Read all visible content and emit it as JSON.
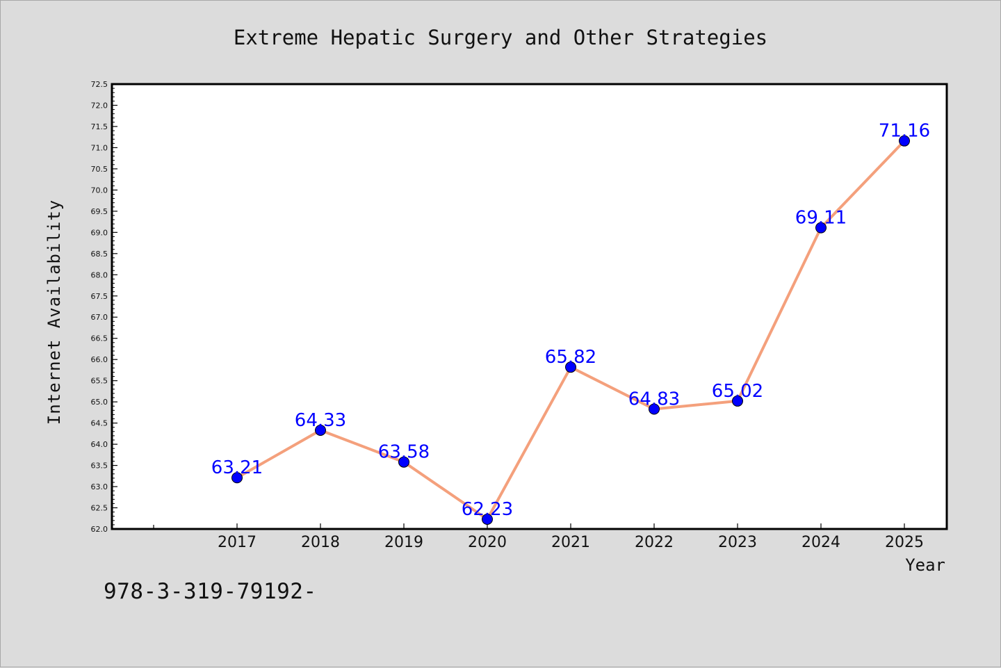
{
  "chart_data": {
    "type": "line",
    "title": "Extreme Hepatic Surgery and Other Strategies",
    "xlabel": "Year",
    "ylabel": "Internet Availability",
    "categories": [
      "2017",
      "2018",
      "2019",
      "2020",
      "2021",
      "2022",
      "2023",
      "2024",
      "2025"
    ],
    "series": [
      {
        "values": [
          63.21,
          64.33,
          63.58,
          62.23,
          65.82,
          64.83,
          65.02,
          69.11,
          71.16
        ],
        "data_labels": [
          "63.21",
          "64.33",
          "63.58",
          "62.23",
          "65.82",
          "64.83",
          "65.02",
          "69.11",
          "71.16"
        ]
      }
    ],
    "ylim": [
      62.0,
      72.5
    ],
    "y_ticks": [
      "62.0",
      "62.5",
      "63.0",
      "63.5",
      "64.0",
      "64.5",
      "65.0",
      "65.5",
      "66.0",
      "66.5",
      "67.0",
      "67.5",
      "68.0",
      "68.5",
      "69.0",
      "69.5",
      "70.0",
      "70.5",
      "71.0",
      "71.5",
      "72.0",
      "72.5"
    ],
    "grid": false,
    "legend": "none"
  },
  "footnote": "978-3-319-79192-",
  "colors": {
    "background": "#dcdcdc",
    "plot_background": "#ffffff",
    "line": "#f4a07c",
    "marker": "#0000ff",
    "data_label": "#0000ff",
    "axis": "#000000"
  }
}
